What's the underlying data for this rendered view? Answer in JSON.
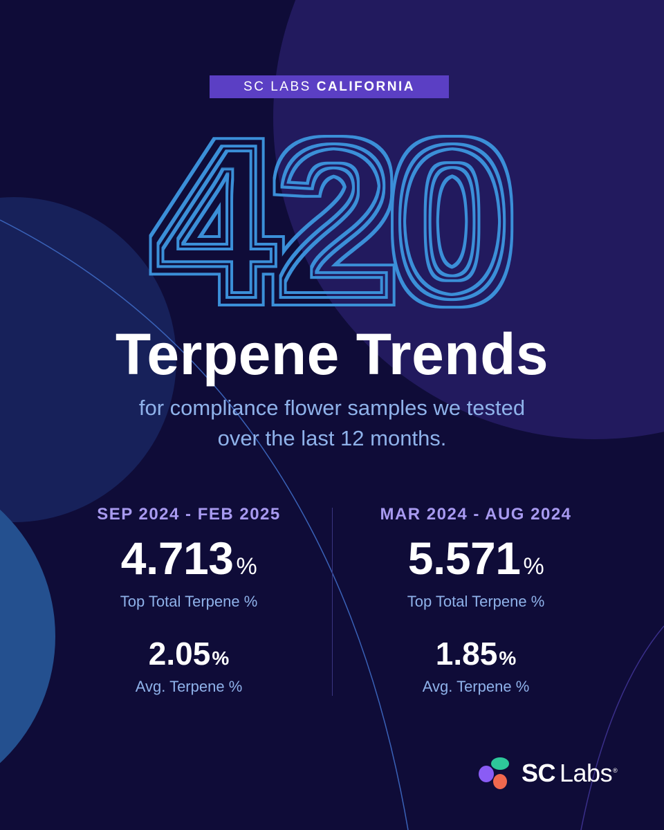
{
  "colors": {
    "background": "#0f0c38",
    "accent_purple": "#5b3fc4",
    "light_blue": "#8fb2ea",
    "lavender": "#a89af0",
    "number_stroke": "#3a8fd8",
    "logo_green": "#2ec79a",
    "logo_purple": "#8a5cf5",
    "logo_orange": "#f0684e"
  },
  "badge": {
    "light": "SC LABS",
    "bold": "CALIFORNIA"
  },
  "hero_number": "420",
  "title": "Terpene Trends",
  "subtitle": {
    "line1": "for compliance flower samples we tested",
    "line2": "over the last 12 months."
  },
  "stats": [
    {
      "period": "SEP 2024 - FEB 2025",
      "top_value": "4.713",
      "top_unit": "%",
      "top_label": "Top Total Terpene %",
      "avg_value": "2.05",
      "avg_unit": "%",
      "avg_label": "Avg. Terpene %"
    },
    {
      "period": "MAR 2024 - AUG 2024",
      "top_value": "5.571",
      "top_unit": "%",
      "top_label": "Top Total Terpene %",
      "avg_value": "1.85",
      "avg_unit": "%",
      "avg_label": "Avg. Terpene %"
    }
  ],
  "brand": {
    "icon": "sc-labs-logo-icon",
    "name_bold": "SC",
    "name_regular": "Labs",
    "registered": "®"
  }
}
